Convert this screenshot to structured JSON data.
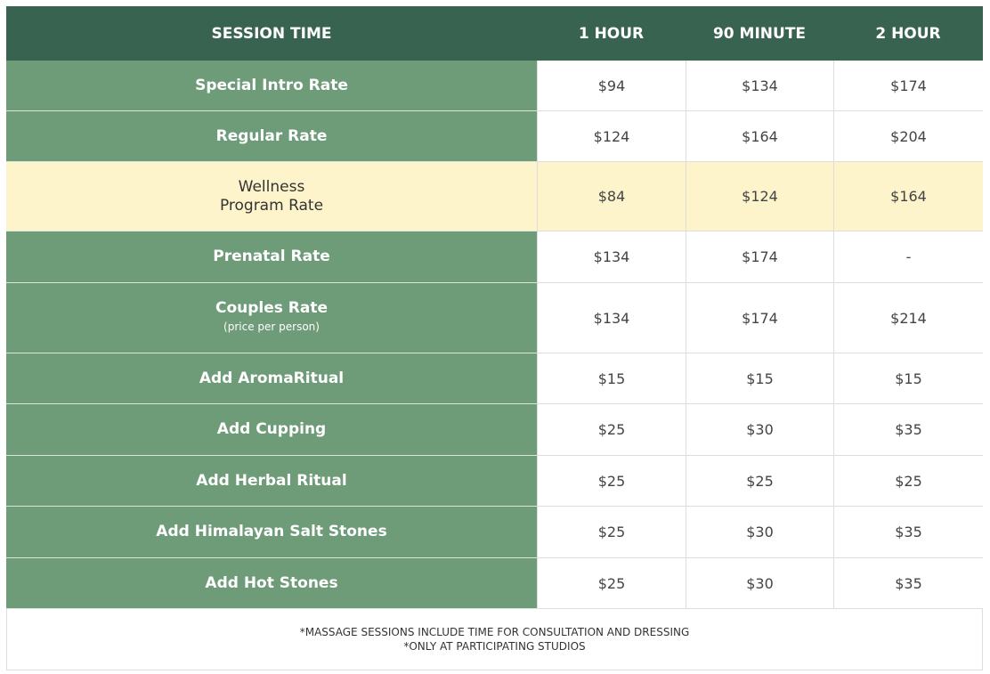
{
  "table": {
    "header": [
      "SESSION TIME",
      "1 HOUR",
      "90 MINUTE",
      "2 HOUR"
    ],
    "rows": [
      {
        "label": [
          "Special Intro Rate"
        ],
        "values": [
          "$94",
          "$134",
          "$174"
        ]
      },
      {
        "label": [
          "Regular Rate"
        ],
        "values": [
          "$124",
          "$164",
          "$204"
        ]
      },
      {
        "label": [
          "Wellness",
          "Program Rate"
        ],
        "values": [
          "$84",
          "$124",
          "$164"
        ],
        "highlight": true
      },
      {
        "label": [
          "Prenatal Rate"
        ],
        "values": [
          "$134",
          "$174",
          "-"
        ]
      },
      {
        "label": [
          "Couples Rate"
        ],
        "note": "(price per person)",
        "values": [
          "$134",
          "$174",
          "$214"
        ]
      },
      {
        "label": [
          "Add AromaRitual"
        ],
        "values": [
          "$15",
          "$15",
          "$15"
        ]
      },
      {
        "label": [
          "Add Cupping"
        ],
        "values": [
          "$25",
          "$30",
          "$35"
        ]
      },
      {
        "label": [
          "Add Herbal Ritual"
        ],
        "values": [
          "$25",
          "$25",
          "$25"
        ]
      },
      {
        "label": [
          "Add Himalayan Salt Stones"
        ],
        "values": [
          "$25",
          "$30",
          "$35"
        ]
      },
      {
        "label": [
          "Add Hot Stones"
        ],
        "values": [
          "$25",
          "$30",
          "$35"
        ]
      }
    ],
    "footnotes": [
      "*MASSAGE SESSIONS INCLUDE TIME FOR CONSULTATION AND DRESSING",
      "*ONLY AT PARTICIPATING STUDIOS"
    ]
  }
}
